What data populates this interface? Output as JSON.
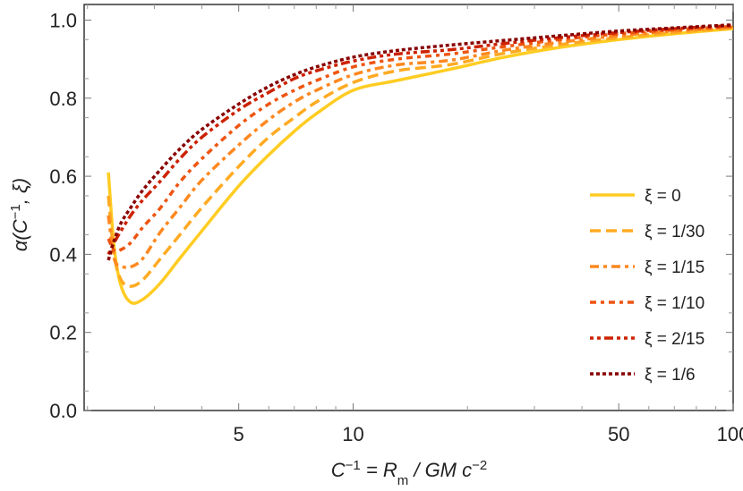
{
  "chart_data": {
    "type": "line",
    "title": "",
    "xlabel": "C⁻¹ = R_m / GM c⁻²",
    "ylabel": "α(C⁻¹, ξ)",
    "xscale": "log",
    "xlim": [
      1.96,
      100
    ],
    "ylim": [
      0,
      1.04
    ],
    "x_ticks": [
      5,
      10,
      50,
      100
    ],
    "x_tick_labels": [
      "5",
      "10",
      "50",
      "100"
    ],
    "y_ticks": [
      0,
      0.2,
      0.4,
      0.6,
      0.8,
      1.0
    ],
    "y_tick_labels": [
      "0.0",
      "0.2",
      "0.4",
      "0.6",
      "0.8",
      "1.0"
    ],
    "grid": false,
    "legend_position": "right",
    "x": [
      2.27,
      2.35,
      2.45,
      2.6,
      2.8,
      3.1,
      3.5,
      4,
      5,
      6,
      7,
      8,
      10,
      13,
      18,
      25,
      35,
      50,
      70,
      100
    ],
    "series": [
      {
        "name": "ξ = 0",
        "color": "#FFCC22",
        "dash": "solid",
        "values": [
          0.61,
          0.42,
          0.32,
          0.277,
          0.285,
          0.325,
          0.39,
          0.46,
          0.575,
          0.655,
          0.715,
          0.76,
          0.82,
          0.845,
          0.874,
          0.905,
          0.93,
          0.95,
          0.965,
          0.978
        ]
      },
      {
        "name": "ξ = 1/30",
        "color": "#FFAA22",
        "dash": "long-dash",
        "values": [
          0.55,
          0.4,
          0.335,
          0.318,
          0.335,
          0.387,
          0.45,
          0.52,
          0.625,
          0.7,
          0.75,
          0.79,
          0.84,
          0.87,
          0.886,
          0.915,
          0.937,
          0.955,
          0.968,
          0.98
        ]
      },
      {
        "name": "ξ = 1/15",
        "color": "#FF8820",
        "dash": "dash-dot",
        "values": [
          0.5,
          0.39,
          0.37,
          0.368,
          0.39,
          0.455,
          0.52,
          0.59,
          0.68,
          0.745,
          0.79,
          0.82,
          0.86,
          0.885,
          0.897,
          0.923,
          0.943,
          0.96,
          0.972,
          0.982
        ]
      },
      {
        "name": "ξ = 1/10",
        "color": "#EE5511",
        "dash": "dot-dash",
        "values": [
          0.44,
          0.41,
          0.412,
          0.43,
          0.47,
          0.517,
          0.585,
          0.645,
          0.73,
          0.785,
          0.82,
          0.845,
          0.88,
          0.9,
          0.913,
          0.932,
          0.95,
          0.965,
          0.975,
          0.984
        ]
      },
      {
        "name": "ξ = 2/15",
        "color": "#CC2200",
        "dash": "dot-dot-dash",
        "values": [
          0.4,
          0.43,
          0.46,
          0.5,
          0.54,
          0.586,
          0.645,
          0.7,
          0.77,
          0.815,
          0.85,
          0.87,
          0.895,
          0.913,
          0.924,
          0.94,
          0.955,
          0.968,
          0.978,
          0.986
        ]
      },
      {
        "name": "ξ = 1/6",
        "color": "#880000",
        "dash": "dotted",
        "values": [
          0.385,
          0.435,
          0.48,
          0.52,
          0.565,
          0.615,
          0.67,
          0.72,
          0.785,
          0.83,
          0.86,
          0.88,
          0.905,
          0.922,
          0.936,
          0.948,
          0.96,
          0.972,
          0.98,
          0.988
        ]
      }
    ]
  }
}
